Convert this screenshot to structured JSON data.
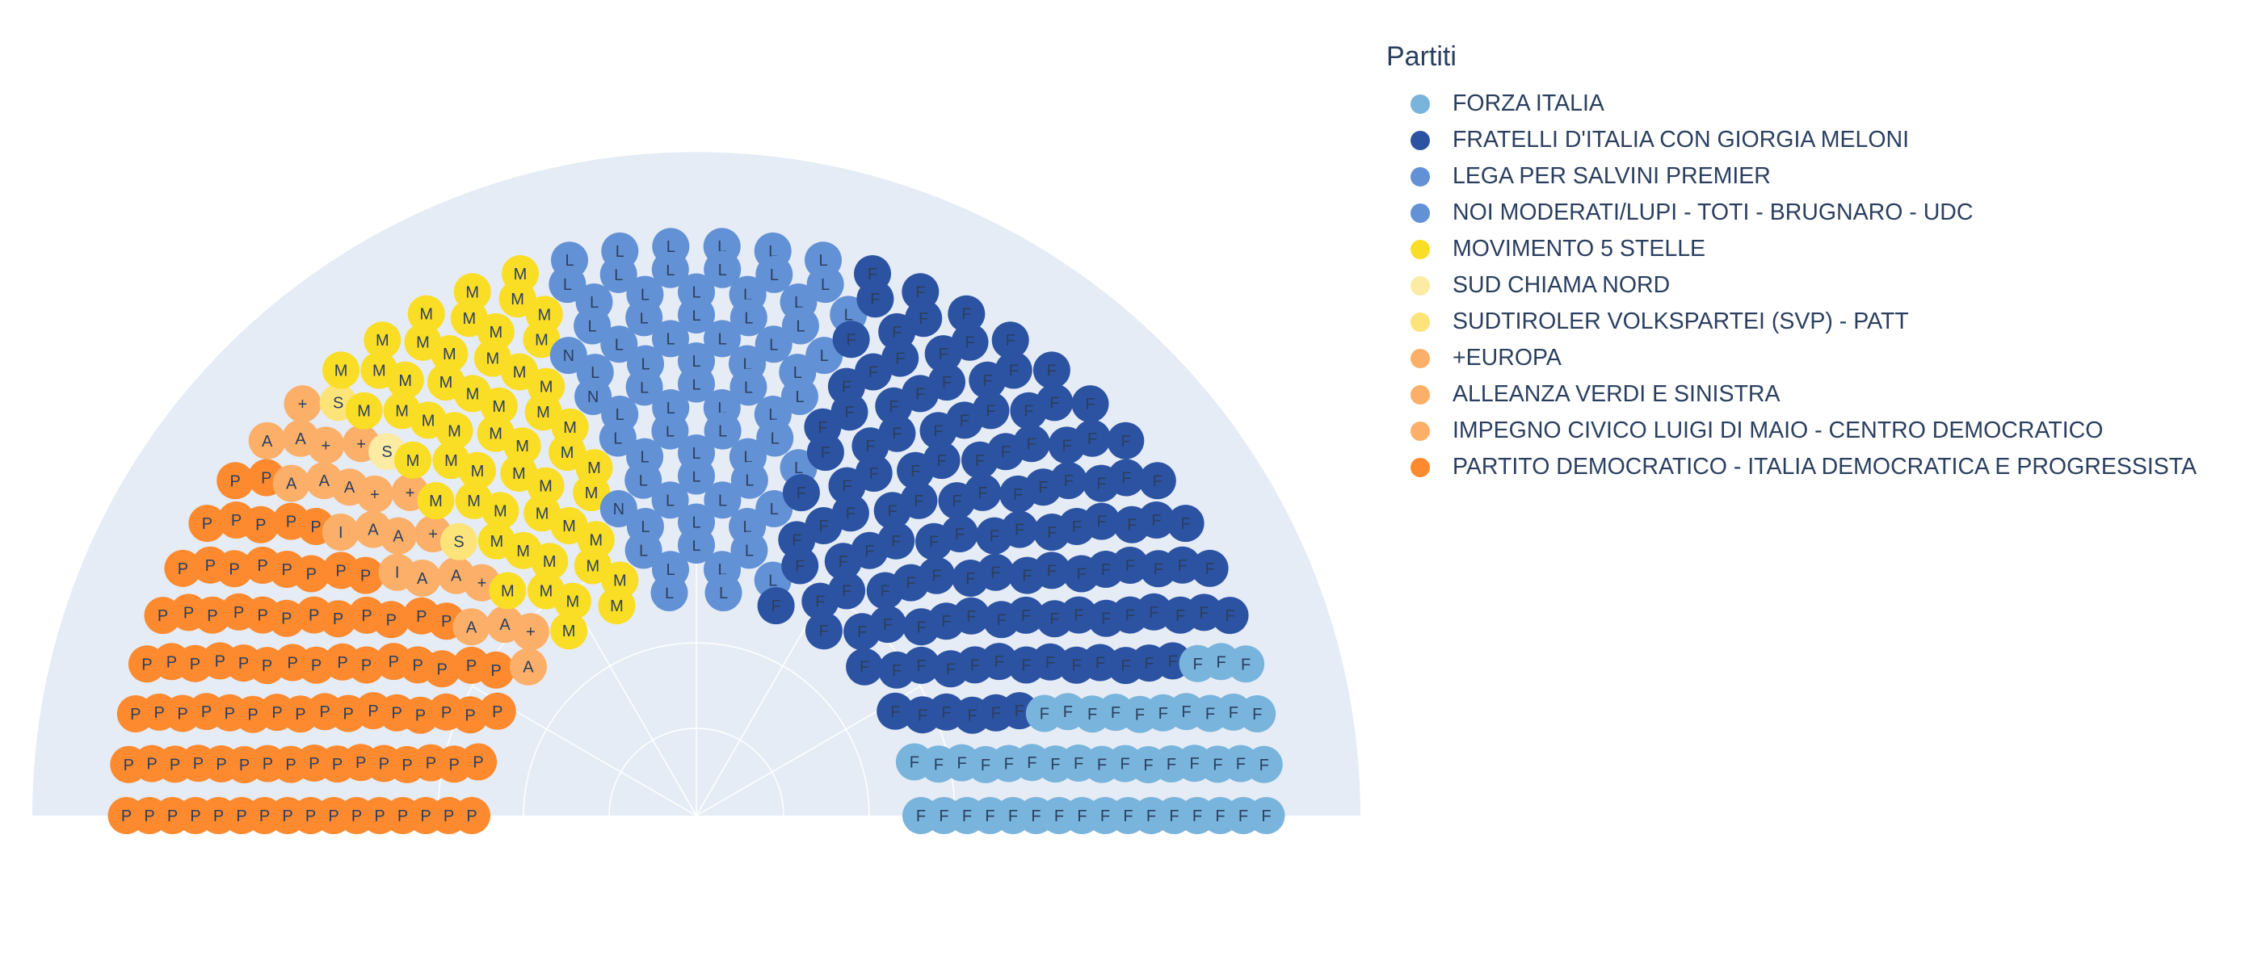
{
  "chart_data": {
    "type": "parliament",
    "title": "",
    "legend_title": "Partiti",
    "legend_position": "top-right",
    "total_seats": 400,
    "parties": [
      {
        "name": "FORZA ITALIA",
        "symbol": "F",
        "color": "#79b4dc",
        "seats": 45
      },
      {
        "name": "FRATELLI D'ITALIA CON GIORGIA MELONI",
        "symbol": "F",
        "color": "#2c53a2",
        "seats": 119
      },
      {
        "name": "LEGA PER SALVINI PREMIER",
        "symbol": "L",
        "color": "#6391d5",
        "seats": 66
      },
      {
        "name": "NOI MODERATI/LUPI - TOTI - BRUGNARO - UDC",
        "symbol": "N",
        "color": "#6391d5",
        "seats": 3
      },
      {
        "name": "MOVIMENTO 5 STELLE",
        "symbol": "M",
        "color": "#fadd25",
        "seats": 52
      },
      {
        "name": "SUD CHIAMA NORD",
        "symbol": "S",
        "color": "#fbeba4",
        "seats": 1
      },
      {
        "name": "SUDTIROLER VOLKSPARTEI (SVP) - PATT",
        "symbol": "S",
        "color": "#fde47a",
        "seats": 2
      },
      {
        "name": "+EUROPA",
        "symbol": "+",
        "color": "#fbaf68",
        "seats": 8
      },
      {
        "name": "ALLEANZA VERDI E SINISTRA",
        "symbol": "A",
        "color": "#fbaf68",
        "seats": 12
      },
      {
        "name": "IMPEGNO CIVICO LUIGI DI MAIO - CENTRO DEMOCRATICO",
        "symbol": "I",
        "color": "#fbaf68",
        "seats": 2
      },
      {
        "name": "PARTITO DEMOCRATICO - ITALIA DEMOCRATICA E PROGRESSISTA",
        "symbol": "P",
        "color": "#fd8a2e",
        "seats": 90
      }
    ],
    "background_color": "#e5ecf6"
  }
}
